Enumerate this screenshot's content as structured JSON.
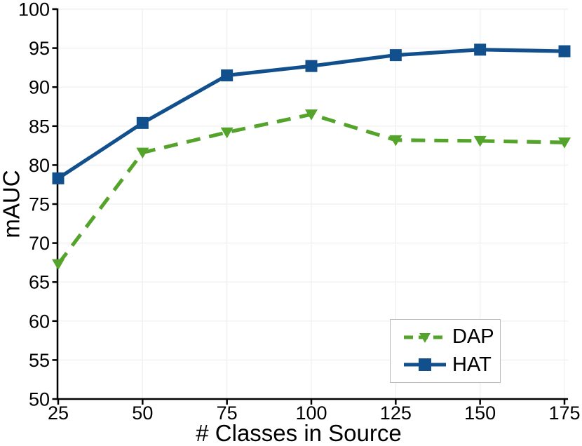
{
  "chart_data": {
    "type": "line",
    "title": "",
    "xlabel": "# Classes in Source",
    "ylabel": "mAUC",
    "x": [
      25,
      50,
      75,
      100,
      125,
      150,
      175
    ],
    "series": [
      {
        "name": "DAP",
        "values": [
          67.3,
          81.6,
          84.2,
          86.5,
          83.2,
          83.1,
          82.9
        ],
        "color": "#54a32b",
        "marker": "triangle-down",
        "line_style": "dashed"
      },
      {
        "name": "HAT",
        "values": [
          78.3,
          85.4,
          91.5,
          92.7,
          94.1,
          94.8,
          94.6
        ],
        "color": "#11508c",
        "marker": "square",
        "line_style": "solid"
      }
    ],
    "xticks": [
      25,
      50,
      75,
      100,
      125,
      150,
      175
    ],
    "yticks": [
      50,
      55,
      60,
      65,
      70,
      75,
      80,
      85,
      90,
      95,
      100
    ],
    "xlim": [
      25,
      176
    ],
    "ylim": [
      50,
      100
    ],
    "grid": true,
    "legend_position": "lower right",
    "colors": {
      "grid": "#efefef",
      "axis": "#000000",
      "tick_label": "#000000",
      "legend_border": "#b9b9b9",
      "background": "#ffffff"
    }
  }
}
